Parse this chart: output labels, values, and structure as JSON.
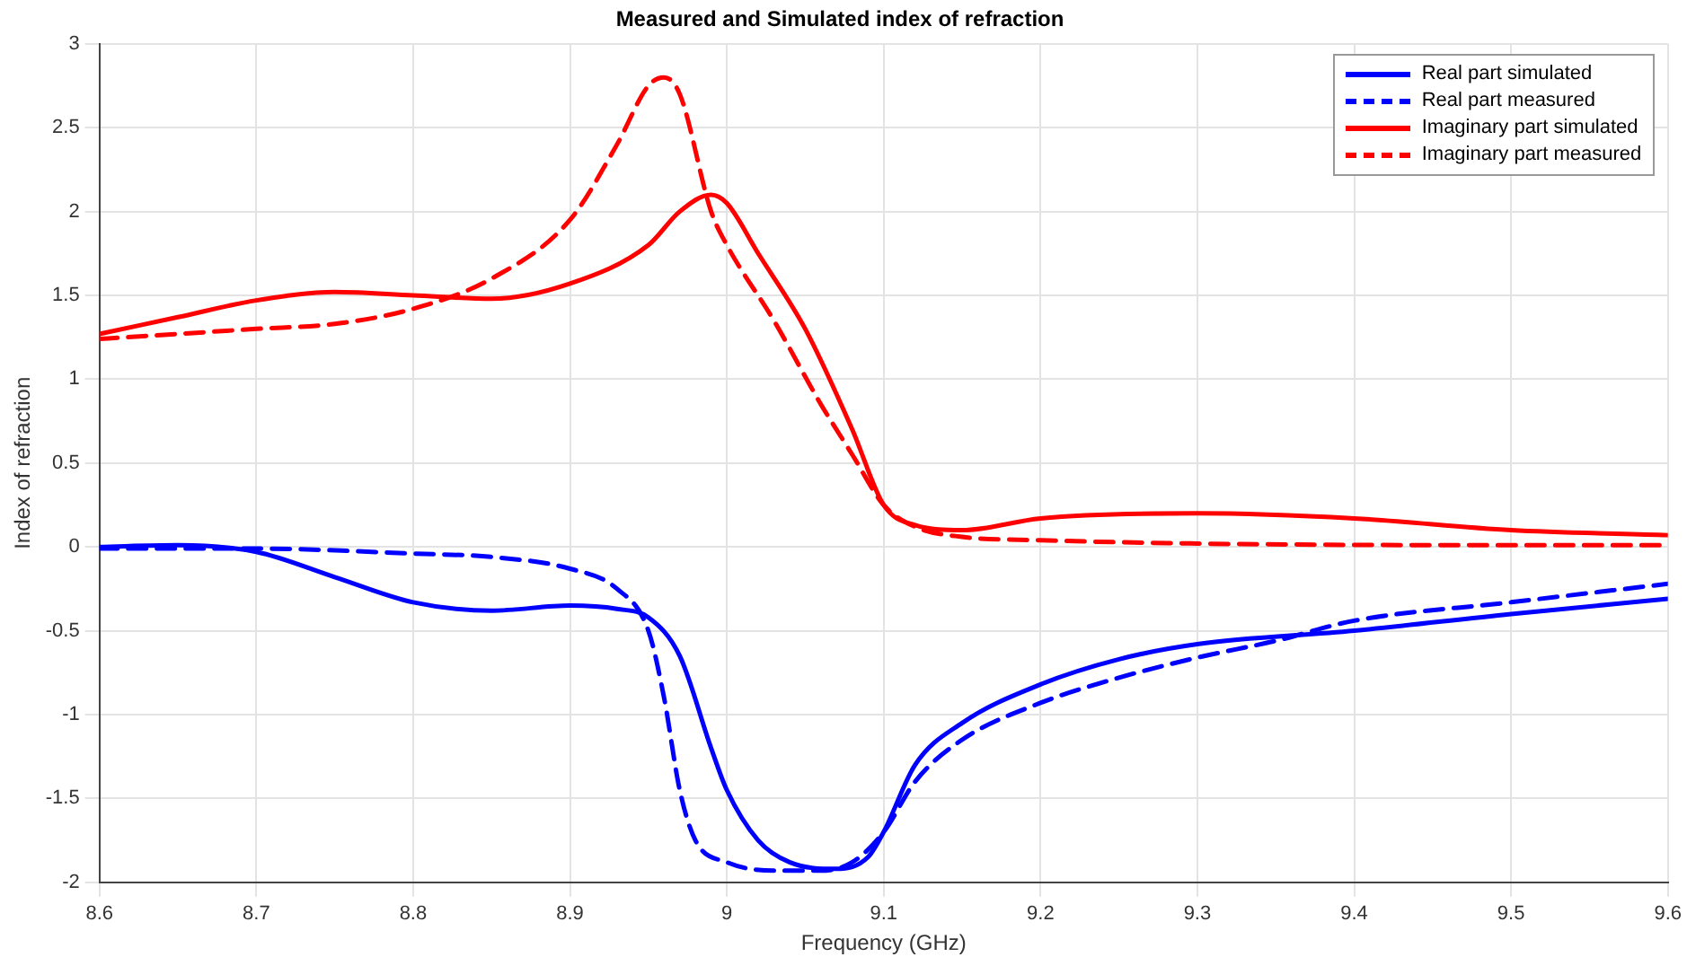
{
  "chart_data": {
    "type": "line",
    "title": "Measured and Simulated index of refraction",
    "xlabel": "Frequency (GHz)",
    "ylabel": "Index of refraction",
    "xlim": [
      8.6,
      9.6
    ],
    "xticks": [
      8.6,
      8.7,
      8.8,
      8.9,
      9,
      9.1,
      9.2,
      9.3,
      9.4,
      9.5,
      9.6
    ],
    "ylim": [
      -2,
      3
    ],
    "yticks": [
      -2,
      -1.5,
      -1,
      -0.5,
      0,
      0.5,
      1,
      1.5,
      2,
      2.5,
      3
    ],
    "grid": true,
    "legend": "top right",
    "marker": "none",
    "series": [
      {
        "name": "Real part simulated",
        "color": "#0000ff",
        "line_style": "solid",
        "x": [
          8.6,
          8.65,
          8.7,
          8.75,
          8.8,
          8.85,
          8.9,
          8.93,
          8.95,
          8.97,
          8.99,
          9.0,
          9.02,
          9.04,
          9.07,
          9.09,
          9.1,
          9.12,
          9.15,
          9.2,
          9.25,
          9.3,
          9.4,
          9.5,
          9.6
        ],
        "values": [
          0,
          0.01,
          -0.03,
          -0.18,
          -0.33,
          -0.38,
          -0.35,
          -0.37,
          -0.42,
          -0.65,
          -1.2,
          -1.45,
          -1.75,
          -1.88,
          -1.92,
          -1.85,
          -1.7,
          -1.3,
          -1.05,
          -0.82,
          -0.67,
          -0.58,
          -0.5,
          -0.4,
          -0.31
        ]
      },
      {
        "name": "Real part measured",
        "color": "#0000ff",
        "line_style": "dashed",
        "x": [
          8.6,
          8.7,
          8.8,
          8.85,
          8.9,
          8.93,
          8.95,
          8.96,
          8.97,
          8.98,
          9.0,
          9.03,
          9.06,
          9.08,
          9.1,
          9.12,
          9.15,
          9.2,
          9.25,
          9.3,
          9.35,
          9.4,
          9.5,
          9.6
        ],
        "values": [
          -0.01,
          -0.01,
          -0.04,
          -0.06,
          -0.13,
          -0.25,
          -0.5,
          -0.9,
          -1.45,
          -1.75,
          -1.88,
          -1.93,
          -1.93,
          -1.88,
          -1.7,
          -1.4,
          -1.15,
          -0.93,
          -0.78,
          -0.66,
          -0.56,
          -0.44,
          -0.33,
          -0.22
        ]
      },
      {
        "name": "Imaginary part simulated",
        "color": "#ff0000",
        "line_style": "solid",
        "x": [
          8.6,
          8.65,
          8.7,
          8.75,
          8.8,
          8.85,
          8.9,
          8.95,
          8.97,
          8.99,
          9.0,
          9.02,
          9.05,
          9.08,
          9.1,
          9.12,
          9.15,
          9.2,
          9.3,
          9.4,
          9.5,
          9.6
        ],
        "values": [
          1.27,
          1.37,
          1.47,
          1.52,
          1.5,
          1.48,
          1.57,
          1.8,
          2.0,
          2.1,
          2.05,
          1.75,
          1.3,
          0.7,
          0.25,
          0.13,
          0.1,
          0.17,
          0.2,
          0.17,
          0.1,
          0.07
        ]
      },
      {
        "name": "Imaginary part measured",
        "color": "#ff0000",
        "line_style": "dashed",
        "x": [
          8.6,
          8.7,
          8.75,
          8.8,
          8.85,
          8.9,
          8.93,
          8.95,
          8.96,
          8.97,
          8.99,
          9.0,
          9.03,
          9.06,
          9.08,
          9.1,
          9.12,
          9.15,
          9.2,
          9.3,
          9.5,
          9.6
        ],
        "values": [
          1.24,
          1.3,
          1.33,
          1.42,
          1.6,
          1.95,
          2.4,
          2.75,
          2.8,
          2.7,
          2.0,
          1.8,
          1.35,
          0.85,
          0.55,
          0.25,
          0.12,
          0.06,
          0.04,
          0.02,
          0.01,
          0.01
        ]
      }
    ]
  }
}
